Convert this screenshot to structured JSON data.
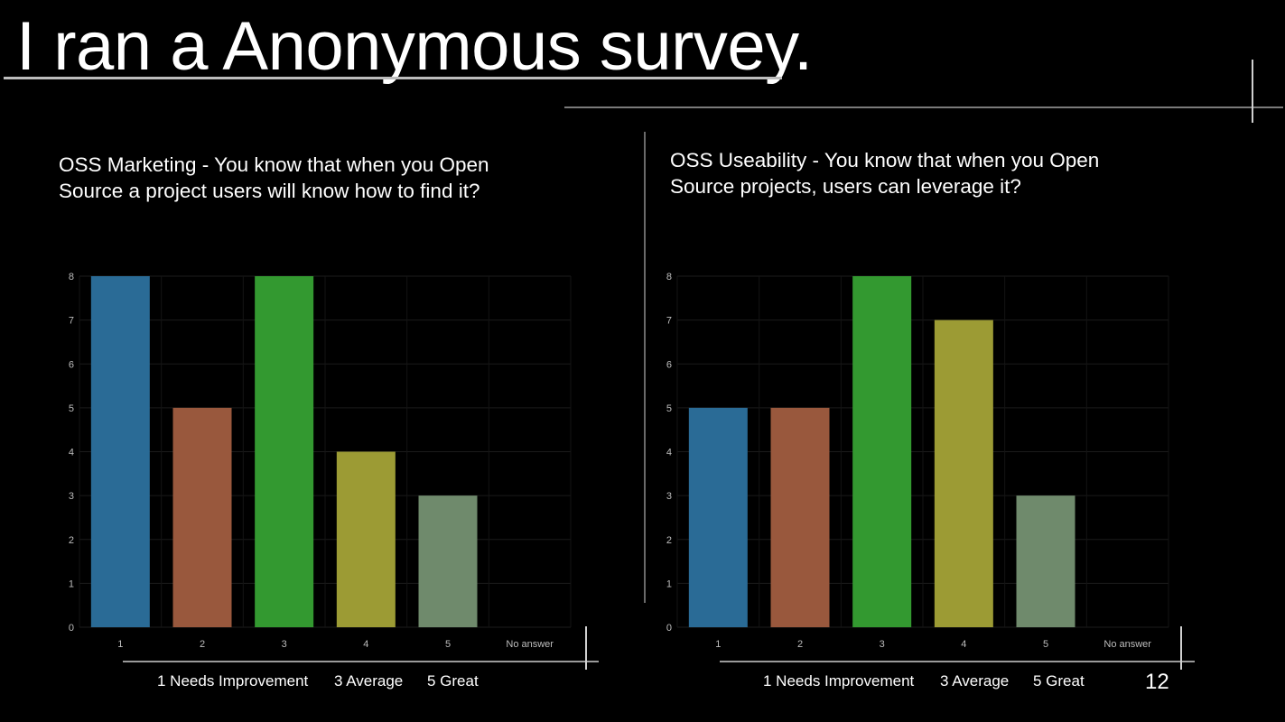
{
  "slide": {
    "title": "I ran a Anonymous survey.",
    "page_number": "12",
    "legend": {
      "needs_improvement": "1 Needs Improvement",
      "average": "3  Average",
      "great": "5 Great"
    }
  },
  "questions": [
    {
      "line1": "OSS Marketing - You know that when you Open",
      "line2": "Source a project users will know how to find it?"
    },
    {
      "line1": "OSS Useability - You know that when you Open",
      "line2": "Source projects, users can leverage it?"
    }
  ],
  "colors": [
    "#2a6b96",
    "#99583d",
    "#339930",
    "#9c9b34",
    "#6f8a6c"
  ],
  "chart_data": [
    {
      "type": "bar",
      "categories": [
        "1",
        "2",
        "3",
        "4",
        "5",
        "No answer"
      ],
      "values": [
        8,
        5,
        8,
        4,
        3,
        0
      ],
      "yticks": [
        0,
        1,
        2,
        3,
        4,
        5,
        6,
        7,
        8
      ],
      "ylim": [
        0,
        8
      ],
      "grid": true
    },
    {
      "type": "bar",
      "categories": [
        "1",
        "2",
        "3",
        "4",
        "5",
        "No answer"
      ],
      "values": [
        5,
        5,
        8,
        7,
        3,
        0
      ],
      "yticks": [
        0,
        1,
        2,
        3,
        4,
        5,
        6,
        7,
        8
      ],
      "ylim": [
        0,
        8
      ],
      "grid": true
    }
  ]
}
